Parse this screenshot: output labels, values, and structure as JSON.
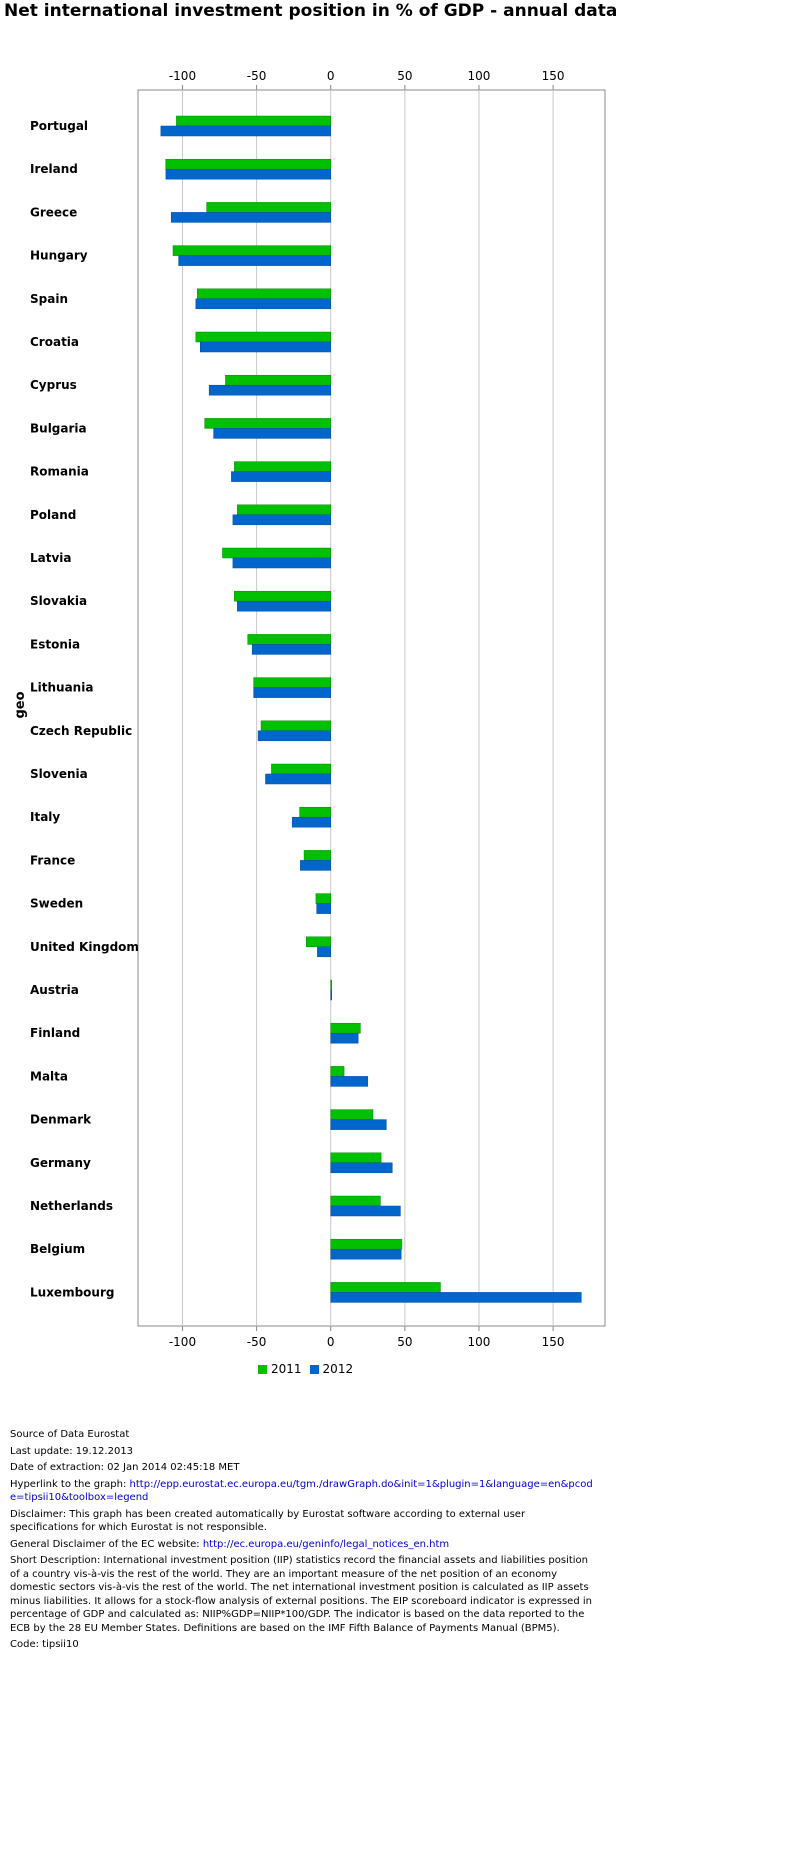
{
  "title": "Net international investment position in % of GDP - annual data",
  "chart_data": {
    "type": "bar",
    "orientation": "horizontal",
    "title": "Net international investment position in % of GDP - annual data",
    "ylabel": "geo",
    "xlabel": "",
    "xlim": [
      -130,
      185
    ],
    "ticks": [
      -100,
      -50,
      0,
      50,
      100,
      150
    ],
    "grid": true,
    "legend_position": "bottom",
    "categories": [
      "Portugal",
      "Ireland",
      "Greece",
      "Hungary",
      "Spain",
      "Croatia",
      "Cyprus",
      "Bulgaria",
      "Romania",
      "Poland",
      "Latvia",
      "Slovakia",
      "Estonia",
      "Lithuania",
      "Czech Republic",
      "Slovenia",
      "Italy",
      "France",
      "Sweden",
      "United Kingdom",
      "Austria",
      "Finland",
      "Malta",
      "Denmark",
      "Germany",
      "Netherlands",
      "Belgium",
      "Luxembourg"
    ],
    "series": [
      {
        "name": "2011",
        "color": "#00c000",
        "values": [
          -104.1,
          -111.3,
          -83.7,
          -106.4,
          -90.0,
          -91.0,
          -71.0,
          -85.0,
          -65.0,
          -63.0,
          -73.0,
          -65.0,
          -56.0,
          -52.0,
          -47.0,
          -40.0,
          -21.0,
          -18.0,
          -10.0,
          -16.5,
          0.7,
          20.0,
          9.0,
          28.5,
          34.0,
          33.5,
          48.0,
          74.0
        ]
      },
      {
        "name": "2012",
        "color": "#0066cc",
        "values": [
          -114.6,
          -111.2,
          -107.6,
          -102.6,
          -91.0,
          -88.0,
          -82.0,
          -79.0,
          -67.0,
          -66.0,
          -66.0,
          -63.0,
          -53.0,
          -52.0,
          -49.0,
          -44.0,
          -26.0,
          -20.5,
          -9.5,
          -9.0,
          0.5,
          18.5,
          25.0,
          37.5,
          41.5,
          47.0,
          47.5,
          169.0
        ]
      }
    ]
  },
  "legend": {
    "items": [
      {
        "label": "2011",
        "color": "#00c000"
      },
      {
        "label": "2012",
        "color": "#0066cc"
      }
    ]
  },
  "footer": {
    "source": "Source of Data Eurostat",
    "last_update": "Last update: 19.12.2013",
    "extraction": "Date of extraction: 02 Jan 2014 02:45:18 MET",
    "hyperlink_label": "Hyperlink to the graph: ",
    "hyperlink_url": "http://epp.eurostat.ec.europa.eu/tgm./drawGraph.do&init=1&plugin=1&language=en&pcode=tipsii10&toolbox=legend",
    "disclaimer": "Disclaimer: This graph has been created automatically by Eurostat software according to external user specifications for which Eurostat is not responsible.",
    "general_label": "General Disclaimer of the EC website: ",
    "general_url": "http://ec.europa.eu/geninfo/legal_notices_en.htm",
    "short_description": "Short Description: International investment position (IIP) statistics record the financial assets and liabilities position of a country vis-à-vis the rest of the world. They are an important measure of the net position of an economy domestic sectors vis-à-vis the rest of the world. The net international investment position is calculated as IIP assets minus liabilities. It allows for a stock-flow analysis of external positions. The EIP scoreboard indicator is expressed in percentage of GDP and calculated as: NIIP%GDP=NIIP*100/GDP. The indicator is based on the data reported to the ECB by the 28 EU Member States. Definitions are based on the IMF Fifth Balance of Payments Manual (BPM5).",
    "code": "Code: tipsii10"
  }
}
